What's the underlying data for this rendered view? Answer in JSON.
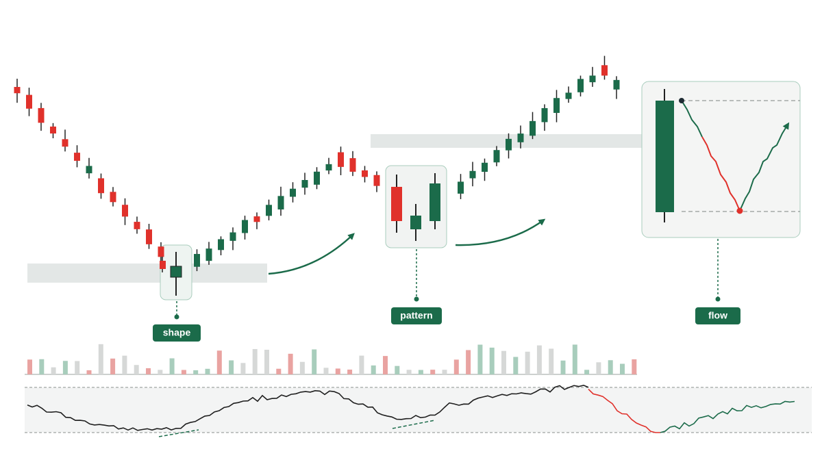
{
  "callouts": [
    {
      "label": "shape"
    },
    {
      "label": "pattern"
    },
    {
      "label": "flow"
    }
  ]
}
